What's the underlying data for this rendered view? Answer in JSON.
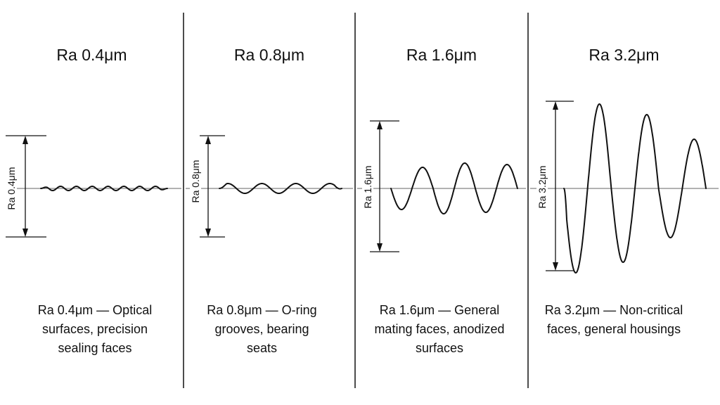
{
  "panels": [
    {
      "title": "Ra 0.4μm",
      "dimension_label": "Ra 0.4μm",
      "caption": "Ra 0.4μm — Optical surfaces, precision sealing faces"
    },
    {
      "title": "Ra 0.8μm",
      "dimension_label": "Ra 0.8μm",
      "caption": "Ra 0.8μm — O-ring grooves, bearing seats"
    },
    {
      "title": "Ra 1.6μm",
      "dimension_label": "Ra 1.6μm",
      "caption": "Ra 1.6μm — General mating faces, anodized surfaces"
    },
    {
      "title": "Ra 3.2μm",
      "dimension_label": "Ra 3.2μm",
      "caption": "Ra 3.2μm — Non-critical faces, general housings"
    }
  ],
  "colors": {
    "background": "#ffffff",
    "line": "#111111",
    "baseline": "#666666"
  }
}
